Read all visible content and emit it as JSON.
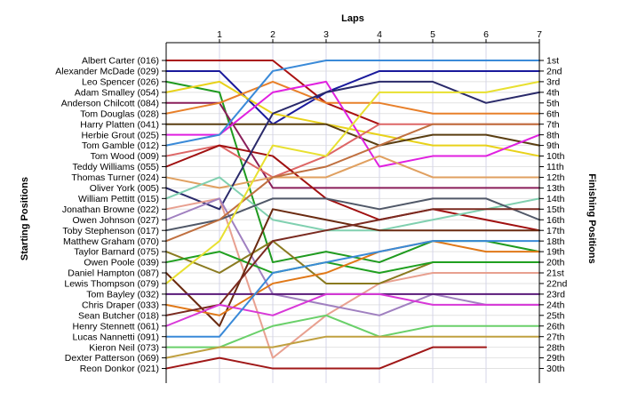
{
  "chart_data": {
    "type": "line",
    "title": "Laps",
    "xlabel": "Laps",
    "ylabel_left": "Starting Positions",
    "ylabel_right": "Finishing Positions",
    "x": [
      0,
      1,
      2,
      3,
      4,
      5,
      6,
      7
    ],
    "x_tick_labels": [
      "1",
      "2",
      "3",
      "4",
      "5",
      "6",
      "7"
    ],
    "position_labels": [
      "1st",
      "2nd",
      "3rd",
      "4th",
      "5th",
      "6th",
      "7th",
      "8th",
      "9th",
      "10th",
      "11th",
      "12th",
      "13th",
      "14th",
      "15th",
      "16th",
      "17th",
      "18th",
      "19th",
      "20th",
      "21st",
      "22nd",
      "23rd",
      "24th",
      "25th",
      "26th",
      "27th",
      "28th",
      "29th",
      "30th"
    ],
    "ylim": [
      1,
      30
    ],
    "y_inverted": true,
    "grid": true,
    "series": [
      {
        "name": "Albert Carter (016)",
        "color": "#aa1111",
        "values": [
          1,
          1,
          1,
          5,
          7,
          null,
          null,
          null
        ]
      },
      {
        "name": "Alexander McDade (029)",
        "color": "#1a1a9c",
        "values": [
          2,
          2,
          7,
          4,
          2,
          2,
          2,
          2
        ]
      },
      {
        "name": "Leo Spencer (026)",
        "color": "#1f9a1f",
        "values": [
          3,
          4,
          20,
          19,
          20,
          18,
          18,
          19
        ]
      },
      {
        "name": "Adam Smalley (054)",
        "color": "#e8d21a",
        "values": [
          4,
          3,
          6,
          7,
          8,
          9,
          9,
          10
        ]
      },
      {
        "name": "Anderson Chilcott (084)",
        "color": "#8a1f5a",
        "values": [
          5,
          5,
          13,
          13,
          13,
          13,
          13,
          13
        ]
      },
      {
        "name": "Tom Douglas (028)",
        "color": "#e8802a",
        "values": [
          6,
          5,
          3,
          5,
          5,
          6,
          6,
          6
        ]
      },
      {
        "name": "Harry Platten (041)",
        "color": "#5a3e12",
        "values": [
          7,
          7,
          7,
          7,
          9,
          8,
          8,
          9
        ]
      },
      {
        "name": "Herbie Grout (025)",
        "color": "#e020e0",
        "values": [
          8,
          8,
          4,
          3,
          11,
          10,
          10,
          8
        ]
      },
      {
        "name": "Tom Gamble (012)",
        "color": "#3a8ad8",
        "values": [
          9,
          8,
          2,
          1,
          1,
          1,
          1,
          1
        ]
      },
      {
        "name": "Tom Wood (009)",
        "color": "#dd6666",
        "values": [
          10,
          9,
          12,
          10,
          7,
          7,
          7,
          7
        ]
      },
      {
        "name": "Teddy Williams (055)",
        "color": "#a01010",
        "values": [
          11,
          9,
          10,
          14,
          16,
          15,
          16,
          17
        ]
      },
      {
        "name": "Thomas Turner (024)",
        "color": "#e0a060",
        "values": [
          12,
          13,
          12,
          12,
          10,
          12,
          12,
          12
        ]
      },
      {
        "name": "Oliver York (005)",
        "color": "#2a2a6a",
        "values": [
          13,
          15,
          6,
          4,
          3,
          3,
          5,
          4
        ]
      },
      {
        "name": "William Pettitt (015)",
        "color": "#80d0b0",
        "values": [
          14,
          12,
          16,
          17,
          17,
          16,
          15,
          14
        ]
      },
      {
        "name": "Jonathan Browne (022)",
        "color": "#e8a090",
        "values": [
          15,
          14,
          29,
          25,
          22,
          21,
          21,
          21
        ]
      },
      {
        "name": "Owen Johnson (027)",
        "color": "#a080c0",
        "values": [
          16,
          14,
          23,
          24,
          25,
          23,
          24,
          24
        ]
      },
      {
        "name": "Toby Stephenson (017)",
        "color": "#505868",
        "values": [
          17,
          16,
          14,
          14,
          15,
          14,
          14,
          16
        ]
      },
      {
        "name": "Matthew Graham (070)",
        "color": "#c07040",
        "values": [
          18,
          16,
          12,
          11,
          9,
          7,
          7,
          7
        ]
      },
      {
        "name": "Taylor Barnard (075)",
        "color": "#8a7a20",
        "values": [
          19,
          21,
          18,
          22,
          22,
          20,
          20,
          20
        ]
      },
      {
        "name": "Owen Poole (039)",
        "color": "#20a020",
        "values": [
          20,
          19,
          21,
          20,
          21,
          20,
          20,
          20
        ]
      },
      {
        "name": "Daniel Hampton (087)",
        "color": "#6a2a10",
        "values": [
          21,
          26,
          15,
          16,
          17,
          17,
          17,
          17
        ]
      },
      {
        "name": "Lewis Thompson (079)",
        "color": "#e8e030",
        "values": [
          22,
          18,
          9,
          10,
          4,
          4,
          4,
          3
        ]
      },
      {
        "name": "Tom Bayley (032)",
        "color": "#5a1a7a",
        "values": [
          23,
          23,
          23,
          23,
          23,
          23,
          23,
          23
        ]
      },
      {
        "name": "Chris Draper (033)",
        "color": "#e07818",
        "values": [
          24,
          25,
          22,
          21,
          19,
          18,
          19,
          19
        ]
      },
      {
        "name": "Sean Butcher (018)",
        "color": "#7a2a20",
        "values": [
          25,
          24,
          18,
          17,
          16,
          15,
          15,
          15
        ]
      },
      {
        "name": "Henry Stennett (061)",
        "color": "#d838d8",
        "values": [
          26,
          24,
          25,
          23,
          23,
          24,
          24,
          24
        ]
      },
      {
        "name": "Lucas Nannetti (091)",
        "color": "#3a8ad8",
        "values": [
          27,
          27,
          21,
          20,
          19,
          18,
          18,
          18
        ]
      },
      {
        "name": "Kieron Neil (073)",
        "color": "#6ad06a",
        "values": [
          28,
          28,
          26,
          25,
          27,
          26,
          26,
          26
        ]
      },
      {
        "name": "Dexter Patterson (069)",
        "color": "#c0a040",
        "values": [
          29,
          28,
          28,
          27,
          27,
          27,
          27,
          27
        ]
      },
      {
        "name": "Reon Donkor (021)",
        "color": "#a01818",
        "values": [
          30,
          29,
          30,
          30,
          30,
          28,
          28,
          null
        ]
      }
    ]
  }
}
